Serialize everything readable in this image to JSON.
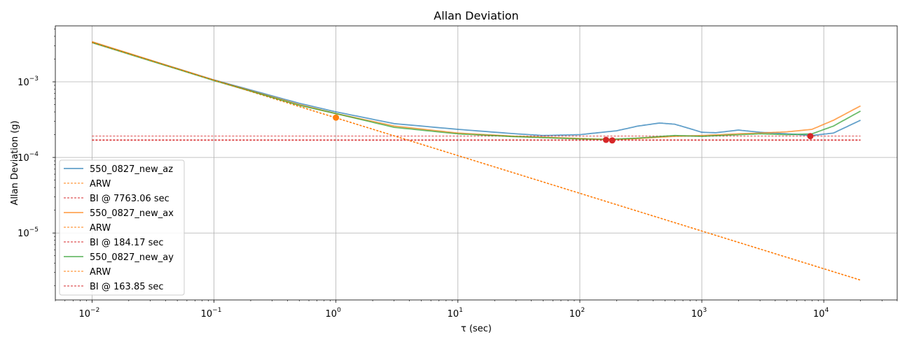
{
  "chart_data": {
    "type": "line",
    "title": "Allan Deviation",
    "xlabel": "τ (sec)",
    "ylabel": "Allan Deviation (g)",
    "x_scale": "log",
    "y_scale": "log",
    "xlim": [
      0.005,
      40000
    ],
    "ylim": [
      1.3e-06,
      0.0055
    ],
    "grid": true,
    "legend_position": "lower-left",
    "x_ticks": [
      {
        "base": "10",
        "exp": "−2",
        "value": 0.01
      },
      {
        "base": "10",
        "exp": "−1",
        "value": 0.1
      },
      {
        "base": "10",
        "exp": "0",
        "value": 1
      },
      {
        "base": "10",
        "exp": "1",
        "value": 10
      },
      {
        "base": "10",
        "exp": "2",
        "value": 100
      },
      {
        "base": "10",
        "exp": "3",
        "value": 1000
      },
      {
        "base": "10",
        "exp": "4",
        "value": 10000
      }
    ],
    "y_ticks": [
      {
        "base": "10",
        "exp": "−5",
        "value": 1e-05
      },
      {
        "base": "10",
        "exp": "−4",
        "value": 0.0001
      },
      {
        "base": "10",
        "exp": "−3",
        "value": 0.001
      }
    ],
    "series": [
      {
        "name": "550_0827_new_az",
        "kind": "adev",
        "color": "#1f77b4",
        "points": [
          [
            0.01,
            0.00335
          ],
          [
            0.1,
            0.00106
          ],
          [
            0.5,
            0.00052
          ],
          [
            1,
            0.0004
          ],
          [
            3,
            0.00028
          ],
          [
            10,
            0.000235
          ],
          [
            30,
            0.000205
          ],
          [
            50,
            0.000195
          ],
          [
            100,
            0.0002
          ],
          [
            200,
            0.000225
          ],
          [
            300,
            0.00026
          ],
          [
            450,
            0.000285
          ],
          [
            600,
            0.000275
          ],
          [
            800,
            0.00024
          ],
          [
            1000,
            0.000215
          ],
          [
            1300,
            0.000212
          ],
          [
            2000,
            0.00023
          ],
          [
            3000,
            0.000215
          ],
          [
            5000,
            0.000205
          ],
          [
            8000,
            0.000195
          ],
          [
            12000,
            0.00021
          ],
          [
            20000,
            0.00031
          ]
        ]
      },
      {
        "name": "ARW",
        "kind": "arw",
        "color": "#ff7f0e",
        "points": [
          [
            0.01,
            0.00333
          ],
          [
            20000,
            2.4e-06
          ]
        ]
      },
      {
        "name": "BI @ 7763.06 sec",
        "kind": "bi",
        "color": "#d62728",
        "points": [
          [
            0.01,
            0.000191
          ],
          [
            20000,
            0.000191
          ]
        ],
        "marker": [
          7763.06,
          0.000191
        ]
      },
      {
        "name": "550_0827_new_ax",
        "kind": "adev",
        "color": "#ff7f0e",
        "points": [
          [
            0.01,
            0.0034
          ],
          [
            0.1,
            0.00105
          ],
          [
            0.5,
            0.0005
          ],
          [
            1,
            0.00038
          ],
          [
            3,
            0.00026
          ],
          [
            10,
            0.00021
          ],
          [
            30,
            0.00019
          ],
          [
            100,
            0.000178
          ],
          [
            184,
            0.000172
          ],
          [
            300,
            0.000178
          ],
          [
            600,
            0.00019
          ],
          [
            1000,
            0.000195
          ],
          [
            2000,
            0.000205
          ],
          [
            3000,
            0.00021
          ],
          [
            5000,
            0.000218
          ],
          [
            8000,
            0.000235
          ],
          [
            12000,
            0.00031
          ],
          [
            20000,
            0.00048
          ]
        ],
        "marker": [
          1,
          0.000336
        ]
      },
      {
        "name": "ARW",
        "kind": "arw",
        "color": "#ff7f0e",
        "points": [
          [
            0.01,
            0.00336
          ],
          [
            20000,
            2.38e-06
          ]
        ]
      },
      {
        "name": "BI @ 184.17 sec",
        "kind": "bi",
        "color": "#d62728",
        "points": [
          [
            0.01,
            0.000168
          ],
          [
            20000,
            0.000168
          ]
        ],
        "marker": [
          184.17,
          0.000168
        ]
      },
      {
        "name": "550_0827_new_ay",
        "kind": "adev",
        "color": "#2ca02c",
        "points": [
          [
            0.01,
            0.0033
          ],
          [
            0.1,
            0.00104
          ],
          [
            0.5,
            0.00049
          ],
          [
            1,
            0.00038
          ],
          [
            3,
            0.00025
          ],
          [
            10,
            0.000205
          ],
          [
            30,
            0.000188
          ],
          [
            100,
            0.000176
          ],
          [
            164,
            0.000173
          ],
          [
            300,
            0.00018
          ],
          [
            600,
            0.000195
          ],
          [
            1000,
            0.00019
          ],
          [
            2000,
            0.0002
          ],
          [
            3000,
            0.000205
          ],
          [
            5000,
            0.0002
          ],
          [
            8000,
            0.000205
          ],
          [
            12000,
            0.00026
          ],
          [
            20000,
            0.00041
          ]
        ]
      },
      {
        "name": "ARW",
        "kind": "arw",
        "color": "#ff7f0e",
        "points": [
          [
            0.01,
            0.0033
          ],
          [
            20000,
            2.36e-06
          ]
        ]
      },
      {
        "name": "BI @ 163.85 sec",
        "kind": "bi",
        "color": "#d62728",
        "points": [
          [
            0.01,
            0.000171
          ],
          [
            20000,
            0.000171
          ]
        ],
        "marker": [
          163.85,
          0.000171
        ]
      }
    ]
  }
}
